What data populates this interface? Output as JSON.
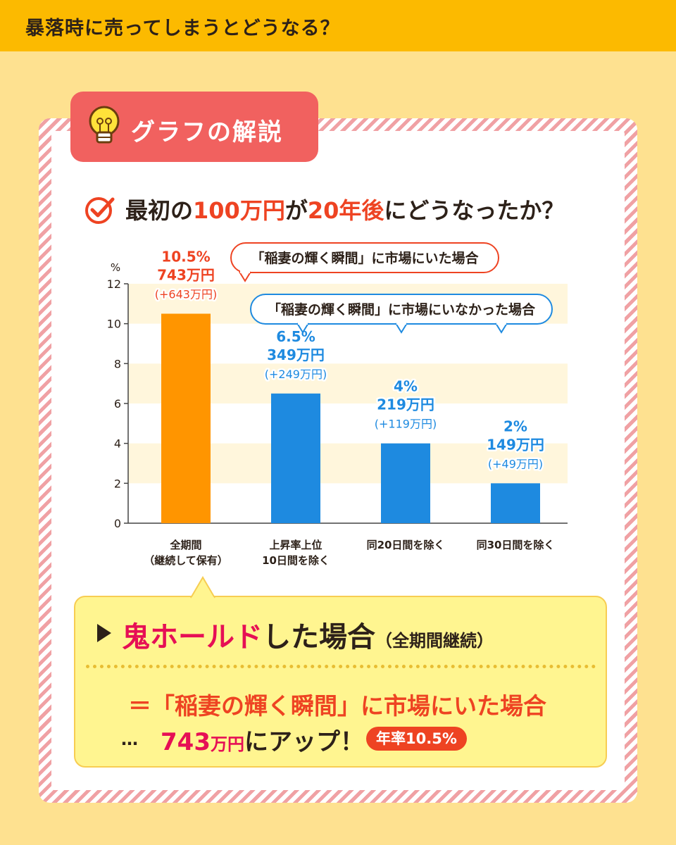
{
  "header": {
    "title": "暴落時に売ってしまうとどうなる？"
  },
  "section": {
    "title": "グラフの解説"
  },
  "question": {
    "part1": "最初の",
    "hl1": "100万円",
    "part2": "が",
    "hl2": "20年後",
    "part3": "にどうなったか？"
  },
  "chart_data": {
    "type": "bar",
    "ylabel": "%",
    "ylim": [
      0,
      12
    ],
    "yticks": [
      0,
      2,
      4,
      6,
      8,
      10,
      12
    ],
    "grid": "alternating bands",
    "categories": [
      [
        "全期間",
        "（継続して保有）"
      ],
      [
        "上昇率上位",
        "10日間を除く"
      ],
      [
        "同20日間を除く"
      ],
      [
        "同30日間を除く"
      ]
    ],
    "values": [
      10.5,
      6.5,
      4,
      2
    ],
    "colors": [
      "#ff9500",
      "#1e8ae0",
      "#1e8ae0",
      "#1e8ae0"
    ],
    "labels": [
      [
        "10.5%",
        "743万円",
        "(+643万円)"
      ],
      [
        "6.5%",
        "349万円",
        "(+249万円)"
      ],
      [
        "4%",
        "219万円",
        "(+119万円)"
      ],
      [
        "2%",
        "149万円",
        "(+49万円)"
      ]
    ],
    "callouts": {
      "in_market": "「稲妻の輝く瞬間」に市場にいた場合",
      "out_market": "「稲妻の輝く瞬間」に市場にいなかった場合"
    }
  },
  "summary": {
    "title_pink": "鬼ホールド",
    "title_rest": "した場合",
    "title_note": "（全期間継続）",
    "equal_line": "＝「稲妻の輝く瞬間」に市場にいた場合",
    "dots": "…",
    "amount": "743",
    "unit": "万円",
    "result_rest": "にアップ！",
    "badge": "年率10.5%"
  }
}
